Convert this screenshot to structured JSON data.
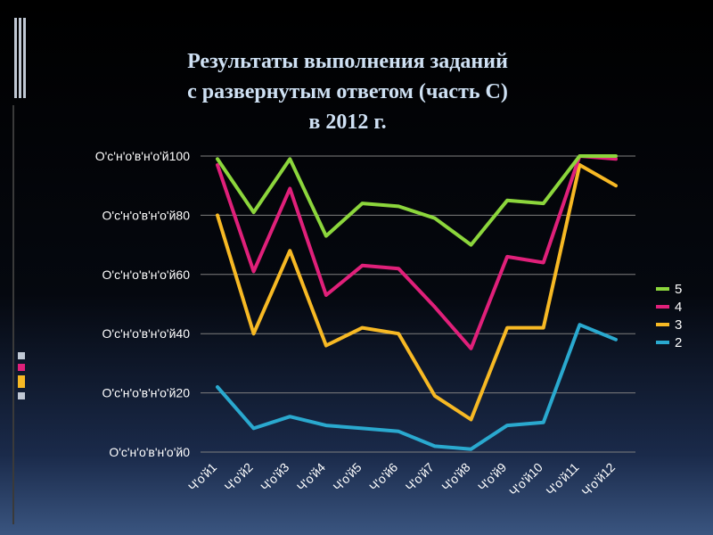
{
  "title": {
    "line1": "Результаты выполнения заданий",
    "line2": "с развернутым ответом (часть С)",
    "line3": "в 2012 г."
  },
  "colors": {
    "background": "#000000",
    "title": "#cfe1f4",
    "grid": "#7f7f7f",
    "axis_text": "#ffffff"
  },
  "chart_data": {
    "type": "line",
    "categories": [
      "Ч'о'й1",
      "Ч'о'й2",
      "Ч'о'й3",
      "Ч'о'й4",
      "Ч'о'й5",
      "Ч'о'й6",
      "Ч'о'й7",
      "Ч'о'й8",
      "Ч'о'й9",
      "Ч'о'й10",
      "Ч'о'й11",
      "Ч'о'й12"
    ],
    "ylim": [
      0,
      100
    ],
    "yticks": [
      0,
      20,
      40,
      60,
      80,
      100
    ],
    "ytick_labels": [
      "O'c'н'o'в'н'o'й0",
      "O'c'н'o'в'н'o'й20",
      "O'c'н'o'в'н'o'й40",
      "O'c'н'o'в'н'o'й60",
      "O'c'н'o'в'н'o'й80",
      "O'c'н'o'в'н'o'й100"
    ],
    "grid": true,
    "legend_position": "right",
    "series": [
      {
        "name": "5",
        "color": "#8cd63c",
        "values": [
          99,
          81,
          99,
          73,
          84,
          83,
          79,
          70,
          85,
          84,
          100,
          100
        ]
      },
      {
        "name": "4",
        "color": "#e0207a",
        "values": [
          97,
          61,
          89,
          53,
          63,
          62,
          49,
          35,
          66,
          64,
          100,
          99
        ]
      },
      {
        "name": "3",
        "color": "#f7b924",
        "values": [
          80,
          40,
          68,
          36,
          42,
          40,
          19,
          11,
          42,
          42,
          97,
          90
        ]
      },
      {
        "name": "2",
        "color": "#2aa9cf",
        "values": [
          22,
          8,
          12,
          9,
          8,
          7,
          2,
          1,
          9,
          10,
          43,
          38
        ]
      }
    ]
  }
}
